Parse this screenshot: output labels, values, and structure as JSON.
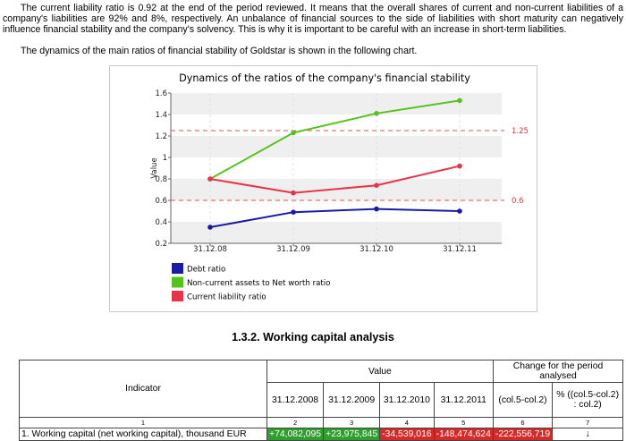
{
  "text": {
    "paragraph": "The current liability ratio is 0.92 at the end of the period reviewed. It means that the overall shares of current and non-current liabilities of a company's liabilities are 92% and 8%, respectively. An unbalance of financial sources to the side of liabilities with short maturity can negatively influence financial stability and the company's solvency. This is why it is important to be careful with an increase in short-term liabilities.",
    "intro": "The dynamics of the main ratios of financial stability of Goldstar is shown in the following chart.",
    "section_title": "1.3.2. Working capital analysis"
  },
  "chart_data": {
    "type": "line",
    "title": "Dynamics of the ratios of the company's financial stability",
    "ylabel": "Value",
    "xlabel": "",
    "categories": [
      "31.12.08",
      "31.12.09",
      "31.12.10",
      "31.12.11"
    ],
    "y_ticks": [
      "0.2",
      "0.4",
      "0.6",
      "0.8",
      "1",
      "1.2",
      "1.4",
      "1.6"
    ],
    "ylim": [
      0.2,
      1.6
    ],
    "series": [
      {
        "name": "Debt ratio",
        "color": "#1a1aa8",
        "values": [
          0.35,
          0.49,
          0.52,
          0.5
        ]
      },
      {
        "name": "Non-current assets to Net worth ratio",
        "color": "#52c41a",
        "values": [
          0.8,
          1.23,
          1.41,
          1.53
        ]
      },
      {
        "name": "Current liability ratio",
        "color": "#e8334a",
        "values": [
          0.8,
          0.67,
          0.74,
          0.92
        ]
      }
    ],
    "thresholds": [
      {
        "value": 1.25,
        "label": "1.25"
      },
      {
        "value": 0.6,
        "label": "0.6"
      }
    ],
    "grid": "horizontal bands",
    "legend_position": "bottom-left"
  },
  "table": {
    "col_indicator": "Indicator",
    "col_value": "Value",
    "col_change": "Change for the period analysed",
    "years": [
      "31.12.2008",
      "31.12.2009",
      "31.12.2010",
      "31.12.2011"
    ],
    "col_change_abs": "(col.5-col.2)",
    "col_change_pct": "% ((col.5-col.2) : col.2)",
    "col_numbers": [
      "1",
      "2",
      "3",
      "4",
      "5",
      "6",
      "7"
    ],
    "row1": {
      "indicator": "1. Working capital (net working capital), thousand EUR",
      "values": [
        "+74,082,095",
        "+23,975,845",
        "-34,539,016",
        "-148,474,624"
      ],
      "change_abs": "-222,556,719",
      "change_pct": "↓"
    }
  },
  "colors": {
    "threshold": "#e05050",
    "band": "#efefef"
  }
}
